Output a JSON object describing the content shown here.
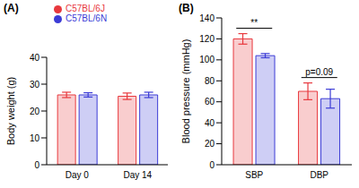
{
  "chart_data": [
    {
      "type": "bar",
      "title": "(A)",
      "y_label": "Body weight (g)",
      "categories": [
        "Day 0",
        "Day 14"
      ],
      "series": [
        {
          "name": "C57BL/6J",
          "color": "#e8383d",
          "values": [
            26,
            25.5
          ],
          "errors": [
            1,
            1.2
          ]
        },
        {
          "name": "C57BL/6N",
          "color": "#3b3bd6",
          "values": [
            26,
            26
          ],
          "errors": [
            0.8,
            1
          ]
        }
      ],
      "ylim": [
        0,
        40
      ],
      "yticks": [
        0,
        10,
        20,
        30,
        40
      ],
      "legend": "top"
    },
    {
      "type": "bar",
      "title": "(B)",
      "y_label": "Blood pressure (mmHg)",
      "categories": [
        "SBP",
        "DBP"
      ],
      "series": [
        {
          "name": "C57BL/6J",
          "color": "#e8383d",
          "values": [
            120,
            70
          ],
          "errors": [
            5,
            8
          ]
        },
        {
          "name": "C57BL/6N",
          "color": "#3b3bd6",
          "values": [
            104,
            63
          ],
          "errors": [
            2,
            9
          ]
        }
      ],
      "ylim": [
        0,
        140
      ],
      "yticks": [
        0,
        20,
        40,
        60,
        80,
        100,
        120,
        140
      ],
      "annotations": [
        {
          "category": "SBP",
          "text": "**"
        },
        {
          "category": "DBP",
          "text": "p=0.09"
        }
      ]
    }
  ]
}
